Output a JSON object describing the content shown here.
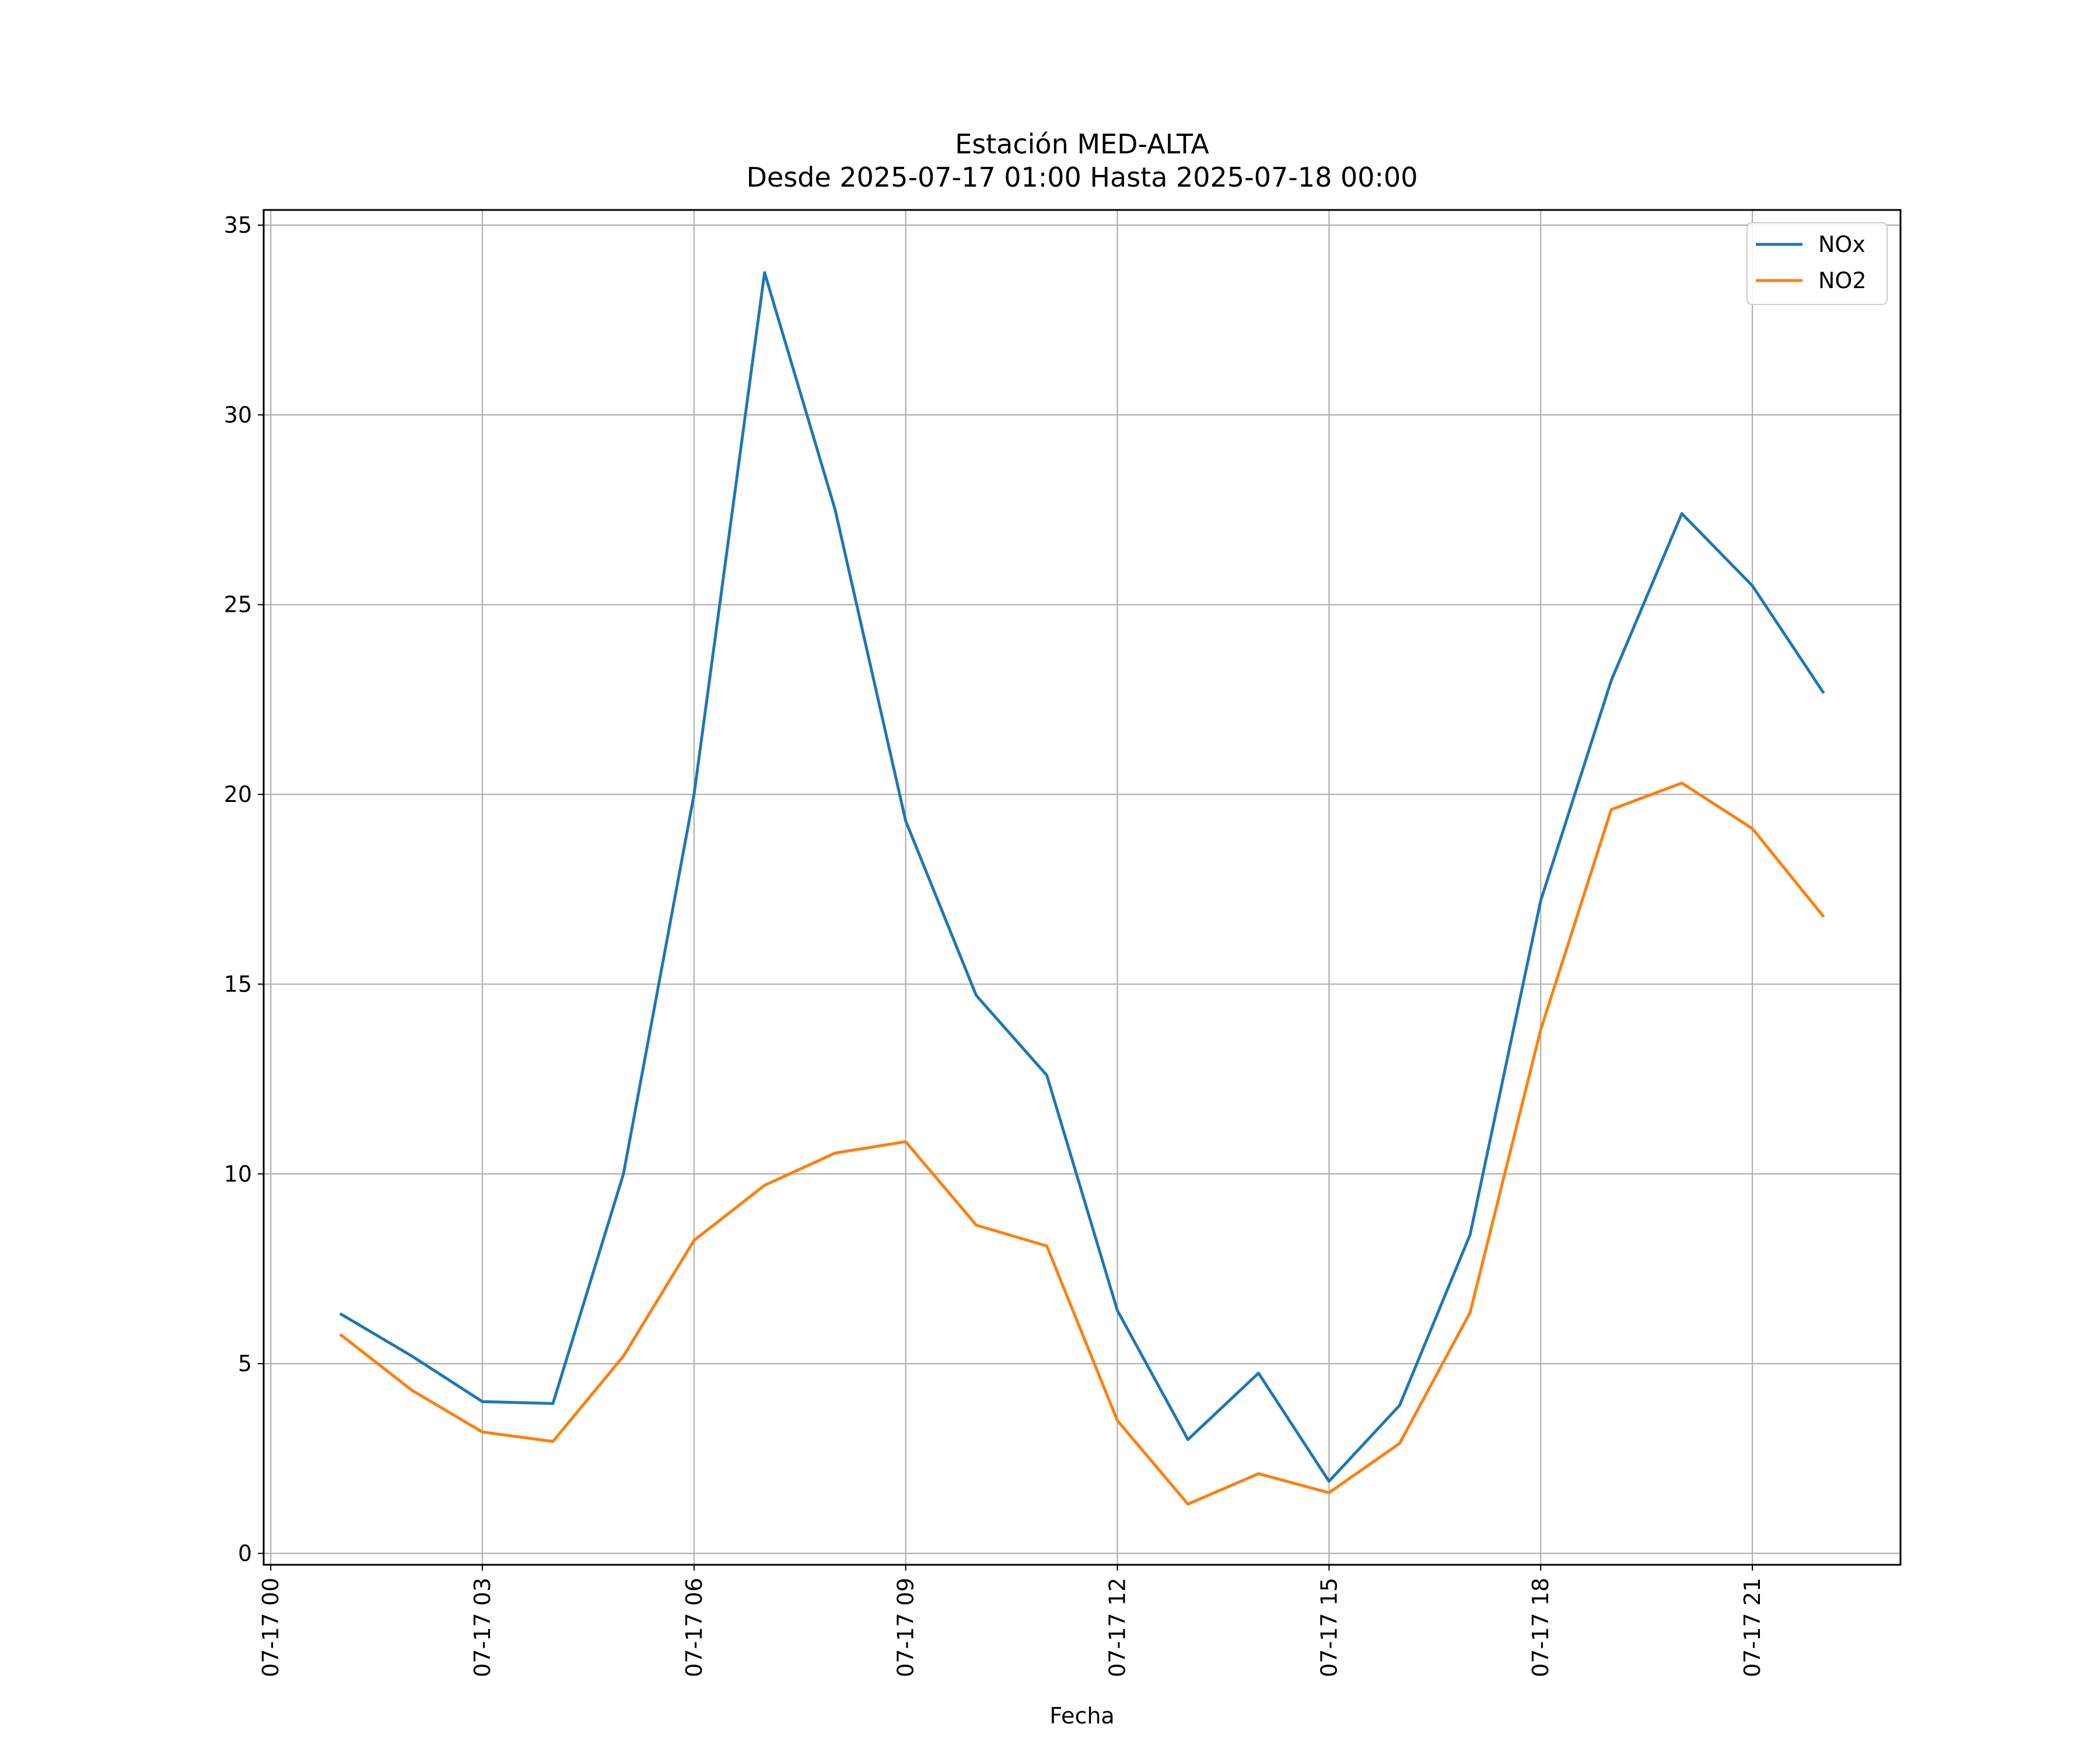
{
  "chart_data": {
    "type": "line",
    "title": "Estación MED-ALTA",
    "subtitle": "Desde 2025-07-17 01:00 Hasta 2025-07-18 00:00",
    "xlabel": "Fecha",
    "ylabel": "",
    "x": [
      "2025-07-17 01:00",
      "2025-07-17 02:00",
      "2025-07-17 03:00",
      "2025-07-17 04:00",
      "2025-07-17 05:00",
      "2025-07-17 06:00",
      "2025-07-17 07:00",
      "2025-07-17 08:00",
      "2025-07-17 09:00",
      "2025-07-17 10:00",
      "2025-07-17 11:00",
      "2025-07-17 12:00",
      "2025-07-17 13:00",
      "2025-07-17 14:00",
      "2025-07-17 15:00",
      "2025-07-17 16:00",
      "2025-07-17 17:00",
      "2025-07-17 18:00",
      "2025-07-17 19:00",
      "2025-07-17 20:00",
      "2025-07-17 21:00",
      "2025-07-17 22:00"
    ],
    "series": [
      {
        "name": "NOx",
        "color": "#1f77b4",
        "values": [
          6.3,
          5.2,
          4.0,
          3.95,
          10.0,
          20.0,
          33.75,
          27.5,
          19.3,
          14.7,
          12.6,
          6.4,
          3.0,
          4.75,
          1.9,
          3.9,
          8.4,
          17.2,
          23.0,
          27.4,
          25.5,
          22.7
        ]
      },
      {
        "name": "NO2",
        "color": "#ff7f0e",
        "values": [
          5.75,
          4.3,
          3.2,
          2.95,
          5.2,
          8.25,
          9.7,
          10.55,
          10.85,
          8.65,
          8.1,
          3.5,
          1.3,
          2.1,
          1.6,
          2.9,
          6.35,
          13.8,
          19.6,
          20.3,
          19.1,
          16.8
        ]
      }
    ],
    "xticks": [
      "07-17 00",
      "07-17 03",
      "07-17 06",
      "07-17 09",
      "07-17 12",
      "07-17 15",
      "07-17 18",
      "07-17 21"
    ],
    "yticks": [
      "0",
      "5",
      "10",
      "15",
      "20",
      "25",
      "30",
      "35"
    ],
    "ylim": [
      -0.3,
      35.4
    ],
    "xlim": [
      "2025-07-16 23:54",
      "2025-07-17 23:06"
    ],
    "grid": true,
    "legend_position": "top-right"
  }
}
